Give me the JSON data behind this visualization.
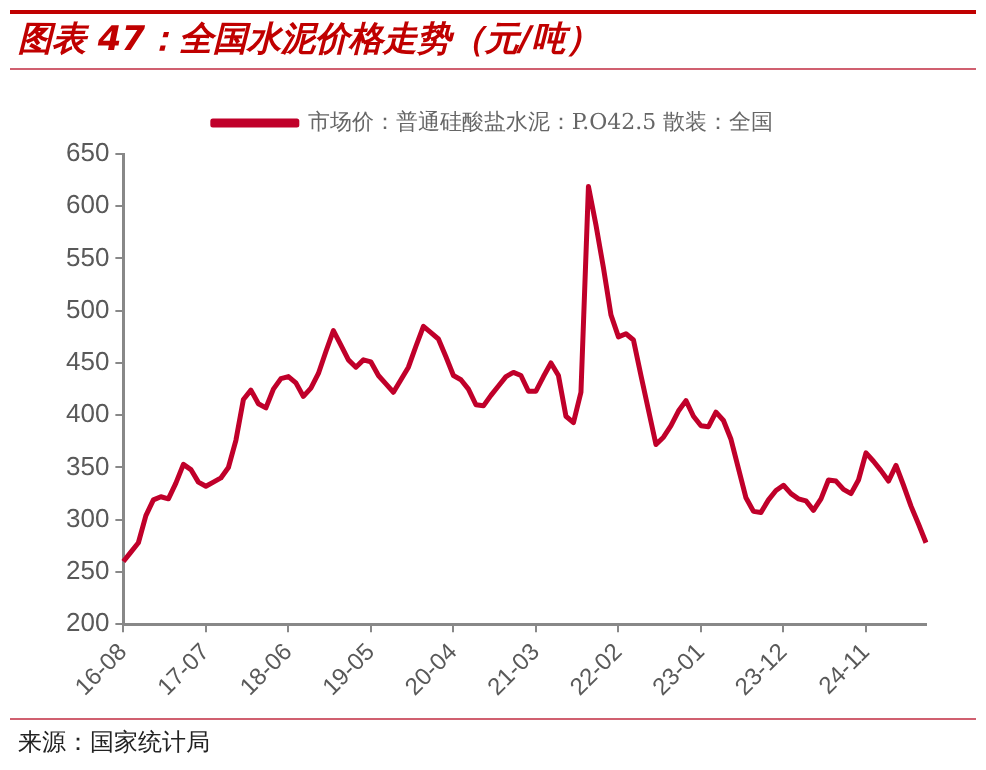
{
  "chart_data": {
    "type": "line",
    "title": "图表 47：全国水泥价格走势（元/吨）",
    "annotations": [
      "来源：国家统计局"
    ],
    "legend": "top",
    "grid": false,
    "marker": "none",
    "line_style": "solid",
    "categories": [
      "16-08",
      null,
      null,
      null,
      null,
      null,
      null,
      null,
      null,
      null,
      null,
      "17-07",
      null,
      null,
      null,
      null,
      null,
      null,
      null,
      null,
      null,
      null,
      "18-06",
      null,
      null,
      null,
      null,
      null,
      null,
      null,
      null,
      null,
      null,
      "19-05",
      null,
      null,
      null,
      null,
      null,
      null,
      null,
      null,
      null,
      null,
      "20-04",
      null,
      null,
      null,
      null,
      null,
      null,
      null,
      null,
      null,
      null,
      "21-03",
      null,
      null,
      null,
      null,
      null,
      null,
      null,
      null,
      null,
      null,
      "22-02",
      null,
      null,
      null,
      null,
      null,
      null,
      null,
      null,
      null,
      null,
      "23-01",
      null,
      null,
      null,
      null,
      null,
      null,
      null,
      null,
      null,
      null,
      "23-12",
      null,
      null,
      null,
      null,
      null,
      null,
      null,
      null,
      null,
      null,
      "24-11",
      null,
      null,
      null,
      null,
      null,
      null,
      null,
      null
    ],
    "ylim": [
      200,
      650
    ],
    "yticks": [
      200,
      250,
      300,
      350,
      400,
      450,
      500,
      550,
      600,
      650
    ],
    "series": [
      {
        "name": "市场价：普通硅酸盐水泥：P.O42.5 散装：全国",
        "color": "#c0002a",
        "values": [
          260,
          269,
          278,
          304,
          319,
          322,
          320,
          335,
          353,
          348,
          336,
          332,
          336,
          340,
          350,
          376,
          415,
          424,
          411,
          407,
          425,
          435,
          437,
          431,
          418,
          426,
          440,
          461,
          481,
          467,
          453,
          446,
          453,
          451,
          438,
          430,
          422,
          434,
          446,
          466,
          485,
          479,
          473,
          456,
          438,
          434,
          425,
          410,
          409,
          419,
          428,
          437,
          441,
          438,
          423,
          423,
          437,
          450,
          438,
          399,
          393,
          422,
          619,
          582,
          541,
          496,
          475,
          478,
          472,
          438,
          405,
          372,
          379,
          390,
          404,
          414,
          399,
          390,
          389,
          403,
          395,
          377,
          349,
          321,
          308,
          307,
          319,
          328,
          333,
          325,
          320,
          318,
          309,
          320,
          338,
          337,
          329,
          325,
          338,
          364,
          356,
          347,
          337,
          352,
          333,
          313,
          296,
          278
        ]
      }
    ]
  }
}
